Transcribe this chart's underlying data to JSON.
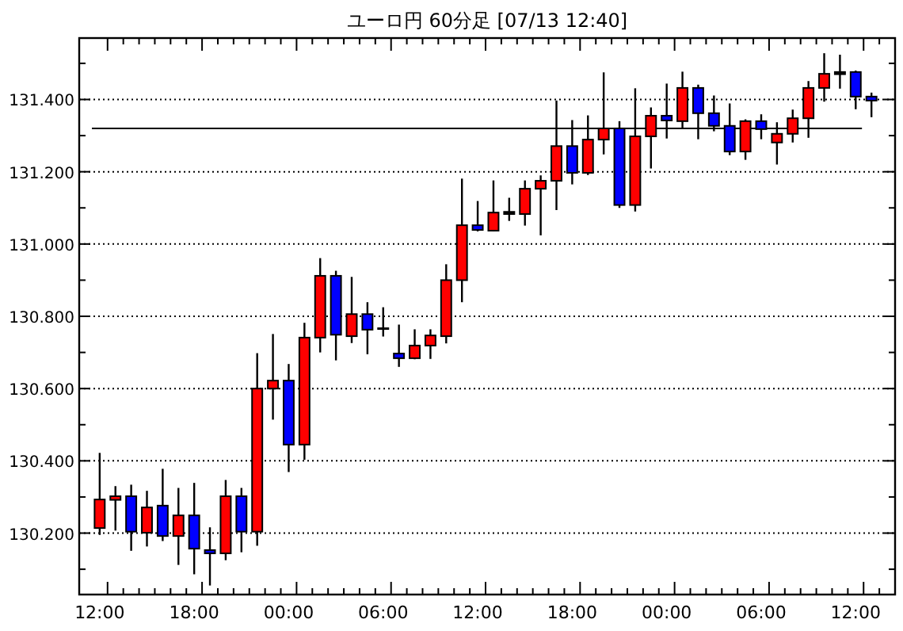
{
  "chart_data": {
    "type": "candlestick",
    "title": "ユーロ円 60分足 [07/13 12:40]",
    "categories": [
      "12:00",
      null,
      null,
      null,
      null,
      null,
      "18:00",
      null,
      null,
      null,
      null,
      null,
      "00:00",
      null,
      null,
      null,
      null,
      null,
      "06:00",
      null,
      null,
      null,
      null,
      null,
      "12:00",
      null,
      null,
      null,
      null,
      null,
      "18:00",
      null,
      null,
      null,
      null,
      null,
      "00:00",
      null,
      null,
      null,
      null,
      null,
      "06:00",
      null,
      null,
      null,
      null,
      null,
      "12:00",
      null
    ],
    "ohlc": [
      [
        130.214,
        130.422,
        130.195,
        130.293
      ],
      [
        130.292,
        130.33,
        130.207,
        130.302
      ],
      [
        130.302,
        130.334,
        130.151,
        130.204
      ],
      [
        130.201,
        130.317,
        130.163,
        130.271
      ],
      [
        130.276,
        130.378,
        130.178,
        130.192
      ],
      [
        130.192,
        130.325,
        130.112,
        130.249
      ],
      [
        130.249,
        130.339,
        130.086,
        130.157
      ],
      [
        130.153,
        130.216,
        130.055,
        130.144
      ],
      [
        130.144,
        130.347,
        130.125,
        130.302
      ],
      [
        130.302,
        130.325,
        130.147,
        130.204
      ],
      [
        130.204,
        130.698,
        130.165,
        130.6
      ],
      [
        130.6,
        130.751,
        130.514,
        130.622
      ],
      [
        130.622,
        130.668,
        130.369,
        130.445
      ],
      [
        130.445,
        130.782,
        130.403,
        130.741
      ],
      [
        130.741,
        130.961,
        130.7,
        130.912
      ],
      [
        130.912,
        130.926,
        130.678,
        130.749
      ],
      [
        130.745,
        130.909,
        130.726,
        130.806
      ],
      [
        130.806,
        130.839,
        130.695,
        130.763
      ],
      [
        130.767,
        130.825,
        130.744,
        130.767
      ],
      [
        130.697,
        130.777,
        130.66,
        130.684
      ],
      [
        130.684,
        130.764,
        130.681,
        130.719
      ],
      [
        130.719,
        130.764,
        130.682,
        130.747
      ],
      [
        130.745,
        130.944,
        130.725,
        130.9
      ],
      [
        130.9,
        131.181,
        130.839,
        131.052
      ],
      [
        131.052,
        131.119,
        131.035,
        131.039
      ],
      [
        131.037,
        131.176,
        131.035,
        131.087
      ],
      [
        131.083,
        131.128,
        131.064,
        131.089
      ],
      [
        131.083,
        131.176,
        131.051,
        131.153
      ],
      [
        131.153,
        131.19,
        131.024,
        131.175
      ],
      [
        131.175,
        131.397,
        131.094,
        131.271
      ],
      [
        131.271,
        131.343,
        131.165,
        131.197
      ],
      [
        131.197,
        131.356,
        131.191,
        131.289
      ],
      [
        131.289,
        131.475,
        131.248,
        131.32
      ],
      [
        131.32,
        131.34,
        131.1,
        131.108
      ],
      [
        131.108,
        131.431,
        131.09,
        131.298
      ],
      [
        131.298,
        131.378,
        131.209,
        131.355
      ],
      [
        131.355,
        131.444,
        131.292,
        131.342
      ],
      [
        131.34,
        131.477,
        131.318,
        131.432
      ],
      [
        131.432,
        131.441,
        131.29,
        131.362
      ],
      [
        131.362,
        131.411,
        131.312,
        131.327
      ],
      [
        131.327,
        131.389,
        131.246,
        131.256
      ],
      [
        131.256,
        131.345,
        131.233,
        131.34
      ],
      [
        131.34,
        131.359,
        131.29,
        131.318
      ],
      [
        131.281,
        131.337,
        131.22,
        131.305
      ],
      [
        131.305,
        131.372,
        131.281,
        131.348
      ],
      [
        131.348,
        131.451,
        131.294,
        131.432
      ],
      [
        131.432,
        131.528,
        131.394,
        131.471
      ],
      [
        131.47,
        131.524,
        131.43,
        131.476
      ],
      [
        131.476,
        131.48,
        131.373,
        131.408
      ],
      [
        131.408,
        131.419,
        131.351,
        131.397
      ]
    ],
    "colors": [
      "#ff0000",
      "#ff0000",
      "#0000ff",
      "#ff0000",
      "#0000ff",
      "#ff0000",
      "#0000ff",
      "#0000ff",
      "#ff0000",
      "#0000ff",
      "#ff0000",
      "#ff0000",
      "#0000ff",
      "#ff0000",
      "#ff0000",
      "#0000ff",
      "#ff0000",
      "#0000ff",
      "#000000",
      "#0000ff",
      "#ff0000",
      "#ff0000",
      "#ff0000",
      "#ff0000",
      "#0000ff",
      "#ff0000",
      "#000000",
      "#ff0000",
      "#ff0000",
      "#ff0000",
      "#0000ff",
      "#ff0000",
      "#ff0000",
      "#0000ff",
      "#ff0000",
      "#ff0000",
      "#0000ff",
      "#ff0000",
      "#0000ff",
      "#0000ff",
      "#0000ff",
      "#ff0000",
      "#0000ff",
      "#ff0000",
      "#ff0000",
      "#ff0000",
      "#ff0000",
      "#000000",
      "#0000ff",
      "#0000ff"
    ],
    "ylim": [
      130.03,
      131.57
    ],
    "yticks": [
      {
        "value": 130.1,
        "label": null
      },
      {
        "value": 130.2,
        "label": "130.200"
      },
      {
        "value": 130.3,
        "label": null
      },
      {
        "value": 130.4,
        "label": "130.400"
      },
      {
        "value": 130.5,
        "label": null
      },
      {
        "value": 130.6,
        "label": "130.600"
      },
      {
        "value": 130.7,
        "label": null
      },
      {
        "value": 130.8,
        "label": "130.800"
      },
      {
        "value": 130.9,
        "label": null
      },
      {
        "value": 131.0,
        "label": "131.000"
      },
      {
        "value": 131.1,
        "label": null
      },
      {
        "value": 131.2,
        "label": "131.200"
      },
      {
        "value": 131.3,
        "label": null
      },
      {
        "value": 131.4,
        "label": "131.400"
      },
      {
        "value": 131.5,
        "label": null
      }
    ],
    "grid": "y",
    "ref_lines": [
      {
        "axis": "y",
        "value": 131.32,
        "color": "#000000"
      }
    ]
  }
}
